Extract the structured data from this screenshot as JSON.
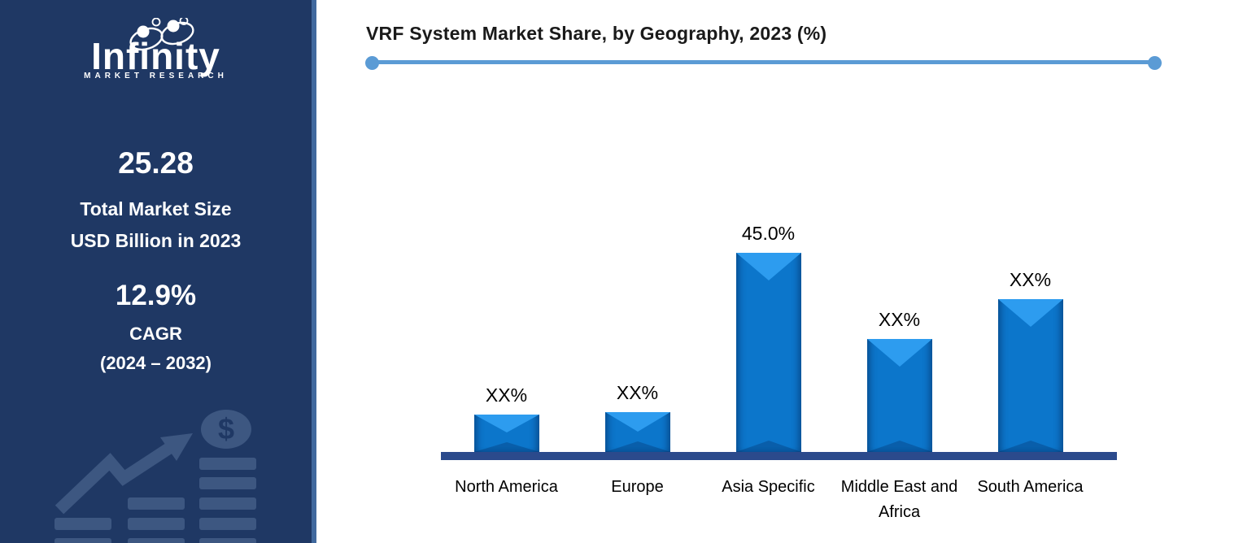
{
  "sidebar": {
    "logo_brand": "Infinity",
    "logo_sub": "MARKET RESEARCH",
    "market_size_value": "25.28",
    "market_size_label_line1": "Total Market Size",
    "market_size_label_line2": "USD Billion in 2023",
    "cagr_value": "12.9%",
    "cagr_label": "CAGR",
    "cagr_period": "(2024 – 2032)",
    "watermark_icons": [
      "growth-arrow-icon",
      "dollar-coin-icon",
      "bar-stack-icon"
    ]
  },
  "chart": {
    "title": "VRF System Market Share, by Geography, 2023 (%)"
  },
  "chart_data": {
    "type": "bar",
    "title": "VRF System Market Share, by Geography, 2023 (%)",
    "categories": [
      "North America",
      "Europe",
      "Asia Specific",
      "Middle East and Africa",
      "South America"
    ],
    "labels": [
      "XX%",
      "XX%",
      "45.0%",
      "XX%",
      "XX%"
    ],
    "values": [
      8.5,
      9,
      45,
      25.5,
      34.5
    ],
    "value_note": "values are % market share; XX% bars estimated from pixel heights, only Asia Specific labeled 45.0%",
    "ylim": [
      0,
      50
    ],
    "grid": false,
    "legend": false,
    "bar_color": "#0C76CB",
    "bar_top_color": "#2D9CEF",
    "baseline_color": "#2B4A8C"
  },
  "colors": {
    "sidebar_bg": "#1F3864",
    "sidebar_border": "#41699E",
    "divider": "#5B9BD5",
    "title_text": "#1A1A1A",
    "watermark": "#3D5781"
  }
}
